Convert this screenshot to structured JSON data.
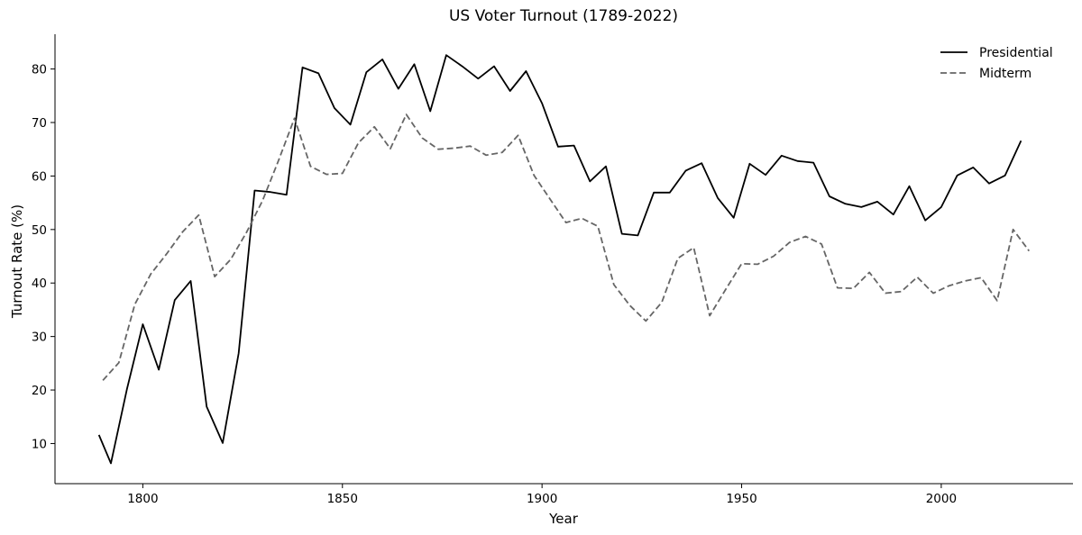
{
  "chart_data": {
    "type": "line",
    "title": "US Voter Turnout (1789-2022)",
    "xlabel": "Year",
    "ylabel": "Turnout Rate (%)",
    "xlim": [
      1778,
      2033
    ],
    "ylim": [
      2.5,
      86.5
    ],
    "xticks": [
      1800,
      1850,
      1900,
      1950,
      2000
    ],
    "yticks": [
      10,
      20,
      30,
      40,
      50,
      60,
      70,
      80
    ],
    "grid": false,
    "legend": {
      "placement": "top-right",
      "entries": [
        "Presidential",
        "Midterm"
      ]
    },
    "series": [
      {
        "name": "Presidential",
        "color": "#000000",
        "dash": "solid",
        "x": [
          1789,
          1792,
          1796,
          1800,
          1804,
          1808,
          1812,
          1816,
          1820,
          1824,
          1828,
          1832,
          1836,
          1840,
          1844,
          1848,
          1852,
          1856,
          1860,
          1864,
          1868,
          1872,
          1876,
          1880,
          1884,
          1888,
          1892,
          1896,
          1900,
          1904,
          1908,
          1912,
          1916,
          1920,
          1924,
          1928,
          1932,
          1936,
          1940,
          1944,
          1948,
          1952,
          1956,
          1960,
          1964,
          1968,
          1972,
          1976,
          1980,
          1984,
          1988,
          1992,
          1996,
          2000,
          2004,
          2008,
          2012,
          2016,
          2020
        ],
        "y": [
          11.6,
          6.3,
          20.1,
          32.3,
          23.8,
          36.8,
          40.4,
          16.9,
          10.1,
          26.9,
          57.3,
          57.0,
          56.5,
          80.3,
          79.2,
          72.7,
          69.6,
          79.4,
          81.8,
          76.3,
          80.9,
          72.1,
          82.6,
          80.5,
          78.2,
          80.5,
          75.9,
          79.6,
          73.6,
          65.5,
          65.7,
          59.0,
          61.8,
          49.2,
          48.9,
          56.9,
          56.9,
          61.0,
          62.4,
          55.9,
          52.2,
          62.3,
          60.2,
          63.8,
          62.8,
          62.5,
          56.2,
          54.8,
          54.2,
          55.2,
          52.8,
          58.1,
          51.7,
          54.2,
          60.1,
          61.6,
          58.6,
          60.1,
          66.6
        ]
      },
      {
        "name": "Midterm",
        "color": "#666666",
        "dash": "dashed",
        "x": [
          1790,
          1794,
          1798,
          1802,
          1806,
          1810,
          1814,
          1818,
          1822,
          1826,
          1830,
          1834,
          1838,
          1842,
          1846,
          1850,
          1854,
          1858,
          1862,
          1866,
          1870,
          1874,
          1878,
          1882,
          1886,
          1890,
          1894,
          1898,
          1902,
          1906,
          1910,
          1914,
          1918,
          1922,
          1926,
          1930,
          1934,
          1938,
          1942,
          1946,
          1950,
          1954,
          1958,
          1962,
          1966,
          1970,
          1974,
          1978,
          1982,
          1986,
          1990,
          1994,
          1998,
          2002,
          2006,
          2010,
          2014,
          2018,
          2022
        ],
        "y": [
          21.8,
          25.1,
          36.0,
          41.7,
          45.5,
          49.6,
          52.7,
          41.2,
          44.4,
          49.5,
          55.4,
          62.9,
          70.8,
          61.8,
          60.3,
          60.5,
          66.2,
          69.2,
          65.1,
          71.5,
          67.1,
          65.0,
          65.2,
          65.6,
          63.9,
          64.4,
          67.6,
          60.1,
          55.7,
          51.3,
          52.1,
          50.6,
          39.7,
          35.8,
          32.9,
          36.4,
          44.6,
          46.6,
          33.9,
          38.8,
          43.6,
          43.5,
          45.0,
          47.6,
          48.7,
          47.3,
          39.1,
          39.0,
          42.0,
          38.1,
          38.4,
          41.1,
          38.1,
          39.5,
          40.4,
          41.0,
          36.7,
          50.0,
          46.0
        ]
      }
    ]
  }
}
